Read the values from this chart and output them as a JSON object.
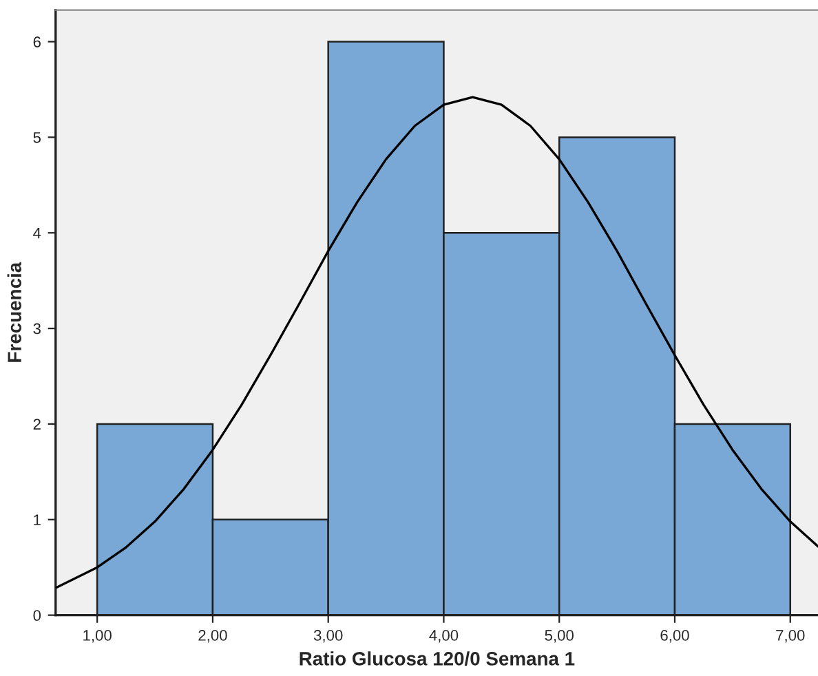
{
  "chart_data": {
    "type": "histogram",
    "xlabel": "Ratio Glucosa 120/0 Semana 1",
    "ylabel": "Frecuencia",
    "bins": [
      1,
      2,
      3,
      4,
      5,
      6,
      7
    ],
    "values": [
      2,
      1,
      6,
      4,
      5,
      2
    ],
    "color": "#79a8d6",
    "series": [
      {
        "type": "line",
        "color": "#000000",
        "x": [
          0.65,
          1.0,
          1.25,
          1.5,
          1.75,
          2.0,
          2.25,
          2.5,
          2.75,
          3.0,
          3.25,
          3.5,
          3.75,
          4.0,
          4.25,
          4.5,
          4.75,
          5.0,
          5.25,
          5.5,
          5.75,
          6.0,
          6.25,
          6.5,
          6.75,
          7.0,
          7.24
        ],
        "values": [
          0.29,
          0.5,
          0.71,
          0.98,
          1.32,
          1.73,
          2.2,
          2.72,
          3.26,
          3.81,
          4.32,
          4.77,
          5.12,
          5.34,
          5.42,
          5.34,
          5.12,
          4.77,
          4.32,
          3.81,
          3.26,
          2.72,
          2.2,
          1.73,
          1.32,
          0.98,
          0.72
        ]
      }
    ],
    "xlim": [
      0.64,
      7.24
    ],
    "ylim": [
      0,
      6.33
    ],
    "xticks": [
      {
        "value": 1,
        "label": "1,00"
      },
      {
        "value": 2,
        "label": "2,00"
      },
      {
        "value": 3,
        "label": "3,00"
      },
      {
        "value": 4,
        "label": "4,00"
      },
      {
        "value": 5,
        "label": "5,00"
      },
      {
        "value": 6,
        "label": "6,00"
      },
      {
        "value": 7,
        "label": "7,00"
      }
    ],
    "yticks": [
      0,
      1,
      2,
      3,
      4,
      5,
      6
    ],
    "grid": false
  }
}
